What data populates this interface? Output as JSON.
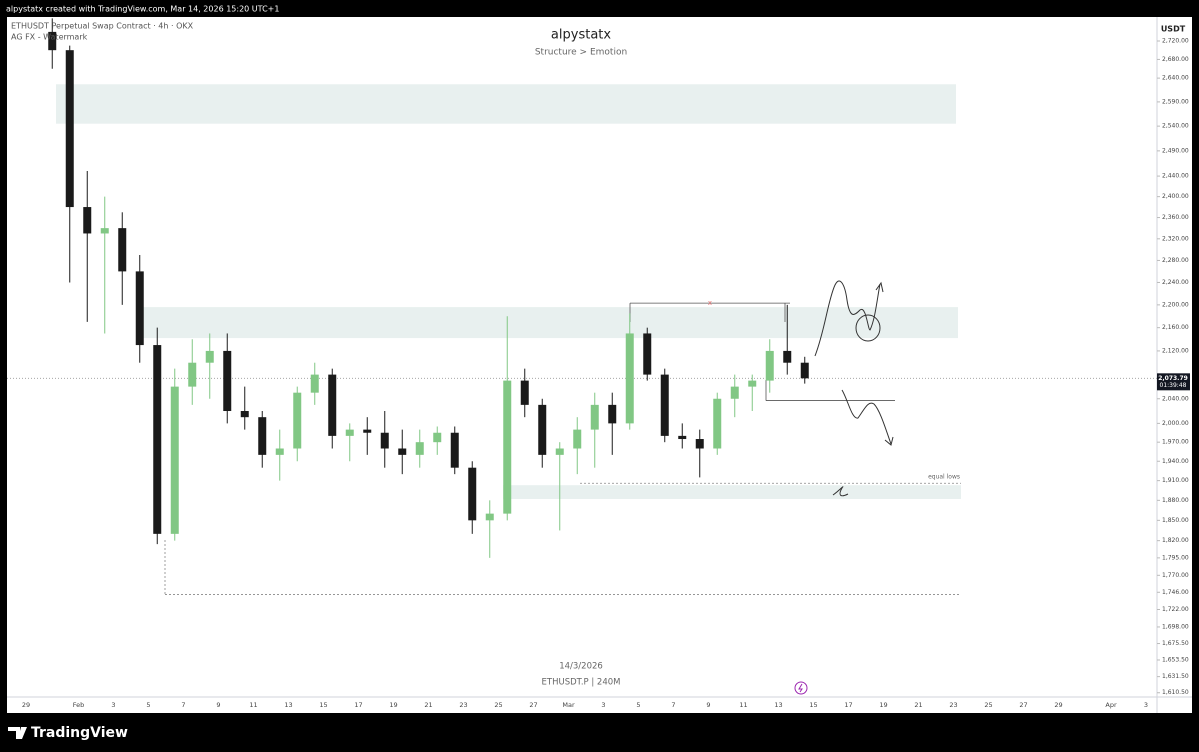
{
  "header": "alpystatx created with TradingView.com, Mar 14, 2026 15:20 UTC+1",
  "footer_brand": "TradingView",
  "chart_data": {
    "type": "candlestick",
    "title": "alpystatx",
    "subtitle": "Structure > Emotion",
    "symbol_line": "ETHUSDT Perpetual Swap Contract · 4h · OKX",
    "indicator_line": "AG FX - Watermark",
    "watermark_date": "14/3/2026",
    "watermark_symbol": "ETHUSDT.P | 240M",
    "currency": "USDT",
    "annotation": "equal lows",
    "marker": "x",
    "scale": "log",
    "grid": false,
    "up_color": "#81c784",
    "down_color": "#1a1a1a",
    "zone_color": "#e8f0ef",
    "last_price": {
      "value": 2073.79,
      "label": "2,073.79"
    },
    "countdown": "01:39:48",
    "zones": [
      {
        "low": 2545,
        "high": 2627
      },
      {
        "low": 2142,
        "high": 2196
      },
      {
        "low": 1882,
        "high": 1903
      }
    ],
    "levels": [
      2203,
      2037,
      1906,
      1743
    ],
    "categories": [
      "29",
      null,
      null,
      "Feb",
      null,
      "3",
      null,
      "5",
      null,
      "7",
      null,
      "9",
      null,
      "11",
      null,
      "13",
      null,
      "15",
      null,
      "17",
      null,
      "19",
      null,
      "21",
      null,
      "23",
      null,
      "25",
      null,
      "27",
      null,
      "Mar",
      null,
      "3",
      null,
      "5",
      null,
      "7",
      null,
      "9",
      null,
      "11",
      null,
      "13",
      null,
      "15",
      null,
      "17",
      null,
      "19",
      null,
      "21",
      null,
      "23",
      null,
      "25",
      null,
      "27",
      null,
      "29",
      null,
      null,
      "Apr",
      null,
      "3"
    ],
    "open": [
      null,
      2740,
      2700,
      2380,
      2330,
      2340,
      2260,
      2130,
      1830,
      2060,
      2100,
      2120,
      2020,
      2010,
      1950,
      1960,
      2050,
      2080,
      1980,
      1990,
      1985,
      1960,
      1950,
      1970,
      1985,
      1930,
      1850,
      1860,
      2070,
      2030,
      1950,
      1960,
      1990,
      2030,
      2000,
      2150,
      2080,
      1980,
      1975,
      1960,
      2040,
      2060,
      2070,
      2120,
      2100,
      null,
      null,
      null,
      null,
      null,
      null,
      null,
      null,
      null,
      null,
      null,
      null,
      null,
      null,
      null,
      null,
      null,
      null,
      null,
      null
    ],
    "high": [
      null,
      2770,
      2710,
      2450,
      2400,
      2370,
      2290,
      2160,
      2090,
      2140,
      2150,
      2150,
      2060,
      2020,
      1990,
      2060,
      2100,
      2090,
      2000,
      2010,
      2020,
      1990,
      1990,
      1995,
      1995,
      1940,
      1880,
      2180,
      2090,
      2040,
      1970,
      2010,
      2050,
      2050,
      2185,
      2160,
      2090,
      2000,
      1990,
      2050,
      2080,
      2080,
      2140,
      2200,
      2110,
      null,
      null,
      null,
      null,
      null,
      null,
      null,
      null,
      null,
      null,
      null,
      null,
      null,
      null,
      null,
      null,
      null,
      null,
      null,
      null
    ],
    "low": [
      null,
      2660,
      2240,
      2170,
      2150,
      2200,
      2100,
      1815,
      1820,
      2030,
      2040,
      2000,
      1990,
      1930,
      1910,
      1940,
      2030,
      1960,
      1940,
      1950,
      1930,
      1920,
      1930,
      1950,
      1920,
      1830,
      1795,
      1850,
      2010,
      1930,
      1835,
      1920,
      1930,
      1950,
      1990,
      2070,
      1970,
      1960,
      1915,
      1950,
      2010,
      2020,
      2050,
      2080,
      2065,
      null,
      null,
      null,
      null,
      null,
      null,
      null,
      null,
      null,
      null,
      null,
      null,
      null,
      null,
      null,
      null,
      null,
      null,
      null,
      null
    ],
    "close": [
      null,
      2700,
      2380,
      2330,
      2340,
      2260,
      2130,
      1830,
      2060,
      2100,
      2120,
      2020,
      2010,
      1950,
      1960,
      2050,
      2080,
      1980,
      1990,
      1985,
      1960,
      1950,
      1970,
      1985,
      1930,
      1850,
      1860,
      2070,
      2030,
      1950,
      1960,
      1990,
      2030,
      2000,
      2150,
      2080,
      1980,
      1975,
      1960,
      2040,
      2060,
      2070,
      2120,
      2100,
      2073.79,
      null,
      null,
      null,
      null,
      null,
      null,
      null,
      null,
      null,
      null,
      null,
      null,
      null,
      null,
      null,
      null,
      null,
      null,
      null,
      null
    ],
    "ylim": [
      1605,
      2773
    ],
    "yticks": [
      {
        "value": 2720,
        "label": "2,720.00"
      },
      {
        "value": 2680,
        "label": "2,680.00"
      },
      {
        "value": 2640,
        "label": "2,640.00"
      },
      {
        "value": 2590,
        "label": "2,590.00"
      },
      {
        "value": 2540,
        "label": "2,540.00"
      },
      {
        "value": 2490,
        "label": "2,490.00"
      },
      {
        "value": 2440,
        "label": "2,440.00"
      },
      {
        "value": 2400,
        "label": "2,400.00"
      },
      {
        "value": 2360,
        "label": "2,360.00"
      },
      {
        "value": 2320,
        "label": "2,320.00"
      },
      {
        "value": 2280,
        "label": "2,280.00"
      },
      {
        "value": 2240,
        "label": "2,240.00"
      },
      {
        "value": 2200,
        "label": "2,200.00"
      },
      {
        "value": 2160,
        "label": "2,160.00"
      },
      {
        "value": 2120,
        "label": "2,120.00"
      },
      {
        "value": 2040,
        "label": "2,040.00"
      },
      {
        "value": 2000,
        "label": "2,000.00"
      },
      {
        "value": 1970,
        "label": "1,970.00"
      },
      {
        "value": 1940,
        "label": "1,940.00"
      },
      {
        "value": 1910,
        "label": "1,910.00"
      },
      {
        "value": 1880,
        "label": "1,880.00"
      },
      {
        "value": 1850,
        "label": "1,850.00"
      },
      {
        "value": 1820,
        "label": "1,820.00"
      },
      {
        "value": 1795,
        "label": "1,795.00"
      },
      {
        "value": 1770,
        "label": "1,770.00"
      },
      {
        "value": 1746,
        "label": "1,746.00"
      },
      {
        "value": 1722,
        "label": "1,722.00"
      },
      {
        "value": 1698,
        "label": "1,698.00"
      },
      {
        "value": 1675.5,
        "label": "1,675.50"
      },
      {
        "value": 1653.5,
        "label": "1,653.50"
      },
      {
        "value": 1631.5,
        "label": "1,631.50"
      },
      {
        "value": 1610.5,
        "label": "1,610.50"
      }
    ]
  }
}
